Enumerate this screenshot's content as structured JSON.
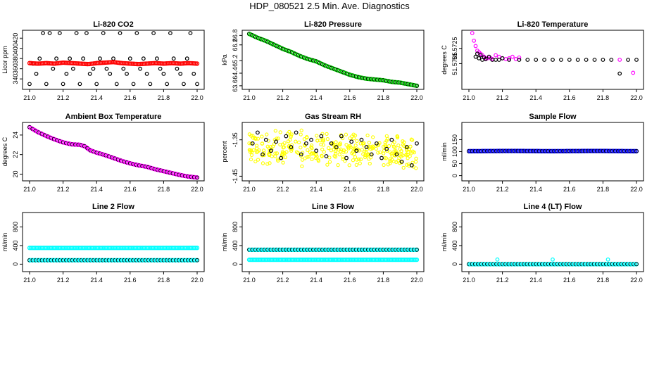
{
  "page": {
    "title": "HDP_080521  2.5 Min. Ave. Diagnostics"
  },
  "chart_data": [
    {
      "type": "scatter",
      "title": "Li-820 CO2",
      "xlabel": "",
      "ylabel": "Licor ppm",
      "xlim": [
        21.0,
        22.0
      ],
      "ylim": [
        325,
        430
      ],
      "xticks": [
        21.0,
        21.2,
        21.4,
        21.6,
        21.8,
        22.0
      ],
      "xtick_labels": [
        "21.0",
        "21.2",
        "21.4",
        "21.6",
        "21.8",
        "22.0"
      ],
      "yticks": [
        340,
        360,
        380,
        400,
        420
      ],
      "ytick_labels": [
        "340",
        "360",
        "380",
        "400",
        "420"
      ],
      "grid": false,
      "series": [
        {
          "name": "co2-scatter",
          "color": "#000000",
          "style": "ring",
          "x": [
            21.0,
            21.02,
            21.04,
            21.06,
            21.08,
            21.1,
            21.12,
            21.14,
            21.16,
            21.18,
            21.2,
            21.22,
            21.24,
            21.26,
            21.28,
            21.3,
            21.32,
            21.34,
            21.36,
            21.38,
            21.4,
            21.42,
            21.44,
            21.46,
            21.48,
            21.5,
            21.52,
            21.54,
            21.56,
            21.58,
            21.6,
            21.62,
            21.64,
            21.66,
            21.68,
            21.7,
            21.72,
            21.74,
            21.76,
            21.78,
            21.8,
            21.82,
            21.84,
            21.86,
            21.88,
            21.9,
            21.92,
            21.94,
            21.96,
            21.98,
            22.0
          ],
          "values": [
            330,
            370,
            350,
            380,
            430,
            330,
            430,
            360,
            380,
            430,
            330,
            350,
            380,
            360,
            430,
            330,
            380,
            430,
            350,
            360,
            330,
            380,
            430,
            360,
            350,
            380,
            330,
            430,
            360,
            350,
            380,
            330,
            430,
            360,
            380,
            350,
            330,
            430,
            380,
            360,
            350,
            330,
            430,
            380,
            360,
            350,
            330,
            380,
            430,
            350,
            330
          ]
        },
        {
          "name": "co2-trace",
          "color": "#ff0000",
          "style": "dense",
          "x": [
            21.0,
            21.05,
            21.1,
            21.15,
            21.2,
            21.25,
            21.3,
            21.35,
            21.4,
            21.45,
            21.5,
            21.55,
            21.6,
            21.65,
            21.7,
            21.75,
            21.8,
            21.85,
            21.9,
            21.95,
            22.0
          ],
          "values": [
            371,
            370,
            371,
            370,
            372,
            371,
            370,
            369,
            371,
            372,
            373,
            371,
            370,
            369,
            370,
            371,
            370,
            371,
            370,
            371,
            370
          ]
        }
      ]
    },
    {
      "type": "scatter",
      "title": "Li-820 Pressure",
      "xlabel": "",
      "ylabel": "kPa",
      "xlim": [
        21.0,
        22.0
      ],
      "ylim": [
        63.55,
        66.95
      ],
      "xticks": [
        21.0,
        21.2,
        21.4,
        21.6,
        21.8,
        22.0
      ],
      "xtick_labels": [
        "21.0",
        "21.2",
        "21.4",
        "21.6",
        "21.8",
        "22.0"
      ],
      "yticks": [
        63.6,
        64.4,
        65.2,
        66.2,
        66.8
      ],
      "ytick_labels": [
        "63.6",
        "64.4",
        "65.2",
        "66.2",
        "66.8"
      ],
      "grid": false,
      "series": [
        {
          "name": "pressure",
          "color": "#00cc00",
          "outline": "#000000",
          "style": "dense",
          "x": [
            21.0,
            21.05,
            21.1,
            21.15,
            21.2,
            21.25,
            21.3,
            21.35,
            21.4,
            21.45,
            21.5,
            21.55,
            21.6,
            21.65,
            21.7,
            21.75,
            21.8,
            21.85,
            21.9,
            21.95,
            22.0
          ],
          "values": [
            66.9,
            66.65,
            66.45,
            66.2,
            65.95,
            65.75,
            65.5,
            65.3,
            65.15,
            64.9,
            64.7,
            64.5,
            64.3,
            64.15,
            64.05,
            64.0,
            63.95,
            63.85,
            63.8,
            63.7,
            63.6
          ]
        }
      ]
    },
    {
      "type": "scatter",
      "title": "Li-820 Temperature",
      "xlabel": "",
      "ylabel": "degrees C",
      "xlim": [
        21.0,
        22.0
      ],
      "ylim": [
        51.5675,
        51.5745
      ],
      "xticks": [
        21.0,
        21.2,
        21.4,
        21.6,
        21.8,
        22.0
      ],
      "xtick_labels": [
        "21.0",
        "21.2",
        "21.4",
        "21.6",
        "21.8",
        "22.0"
      ],
      "yticks": [
        51.5705,
        51.5725
      ],
      "ytick_labels": [
        "51.5705",
        "51.5725"
      ],
      "grid": false,
      "series": [
        {
          "name": "temp-magenta",
          "color": "#ff00ff",
          "style": "ring",
          "x": [
            21.02,
            21.03,
            21.04,
            21.05,
            21.06,
            21.07,
            21.08,
            21.09,
            21.1,
            21.11,
            21.12,
            21.13,
            21.14,
            21.16,
            21.18,
            21.2,
            21.22,
            21.24,
            21.26,
            21.28,
            21.3,
            21.9,
            21.98
          ],
          "values": [
            51.5745,
            51.5735,
            51.5728,
            51.5722,
            51.572,
            51.5718,
            51.5716,
            51.5714,
            51.5712,
            51.5712,
            51.5714,
            51.5712,
            51.5711,
            51.5716,
            51.5714,
            51.5712,
            51.5711,
            51.5712,
            51.5714,
            51.5711,
            51.5713,
            51.571,
            51.5693
          ]
        },
        {
          "name": "temp-black",
          "color": "#000000",
          "style": "ring",
          "x": [
            21.04,
            21.05,
            21.06,
            21.07,
            21.08,
            21.09,
            21.1,
            21.12,
            21.14,
            21.16,
            21.18,
            21.2,
            21.24,
            21.3,
            21.35,
            21.4,
            21.45,
            21.5,
            21.55,
            21.6,
            21.65,
            21.7,
            21.75,
            21.8,
            21.85,
            21.9,
            21.95,
            22.0
          ],
          "values": [
            51.5714,
            51.5718,
            51.5712,
            51.5716,
            51.571,
            51.5713,
            51.5711,
            51.5714,
            51.571,
            51.571,
            51.571,
            51.5712,
            51.571,
            51.571,
            51.571,
            51.571,
            51.571,
            51.571,
            51.571,
            51.571,
            51.571,
            51.571,
            51.571,
            51.571,
            51.571,
            51.5692,
            51.571,
            51.571
          ]
        }
      ]
    },
    {
      "type": "scatter",
      "title": "Ambient Box Temperature",
      "xlabel": "",
      "ylabel": "degrees C",
      "xlim": [
        21.0,
        22.0
      ],
      "ylim": [
        19.6,
        25.0
      ],
      "xticks": [
        21.0,
        21.2,
        21.4,
        21.6,
        21.8,
        22.0
      ],
      "xtick_labels": [
        "21.0",
        "21.2",
        "21.4",
        "21.6",
        "21.8",
        "22.0"
      ],
      "yticks": [
        20,
        22,
        24
      ],
      "ytick_labels": [
        "20",
        "22",
        "24"
      ],
      "grid": false,
      "series": [
        {
          "name": "ambient-temp",
          "color": "#ff00ff",
          "outline": "#000000",
          "style": "dense",
          "x": [
            21.0,
            21.05,
            21.1,
            21.15,
            21.2,
            21.25,
            21.3,
            21.33,
            21.36,
            21.4,
            21.45,
            21.5,
            21.55,
            21.6,
            21.65,
            21.7,
            21.75,
            21.8,
            21.85,
            21.9,
            21.95,
            22.0
          ],
          "values": [
            24.8,
            24.3,
            23.9,
            23.55,
            23.25,
            23.05,
            23.0,
            22.85,
            22.45,
            22.2,
            21.95,
            21.65,
            21.35,
            21.1,
            20.9,
            20.75,
            20.5,
            20.3,
            20.1,
            19.9,
            19.75,
            19.65
          ]
        }
      ]
    },
    {
      "type": "scatter",
      "title": "Gas Stream RH",
      "xlabel": "",
      "ylabel": "percent",
      "xlim": [
        21.0,
        22.0
      ],
      "ylim": [
        -1.455,
        -1.31
      ],
      "xticks": [
        21.0,
        21.2,
        21.4,
        21.6,
        21.8,
        22.0
      ],
      "xtick_labels": [
        "21.0",
        "21.2",
        "21.4",
        "21.6",
        "21.8",
        "22.0"
      ],
      "yticks": [
        -1.35,
        -1.45
      ],
      "ytick_labels": [
        "-1.35",
        "-1.45"
      ],
      "grid": false,
      "series": [
        {
          "name": "rh-yellow",
          "color": "#ffff00",
          "style": "cloud",
          "x": [
            21.0,
            21.5,
            22.0
          ],
          "values": [
            -1.37,
            -1.375,
            -1.385
          ],
          "spread": 0.05
        },
        {
          "name": "rh-black",
          "color": "#000000",
          "style": "ring",
          "x": [
            21.02,
            21.05,
            21.08,
            21.1,
            21.13,
            21.16,
            21.19,
            21.22,
            21.25,
            21.28,
            21.31,
            21.34,
            21.37,
            21.4,
            21.43,
            21.46,
            21.49,
            21.52,
            21.55,
            21.58,
            21.61,
            21.64,
            21.67,
            21.7,
            21.73,
            21.76,
            21.79,
            21.82,
            21.85,
            21.88,
            21.91,
            21.94,
            21.97,
            22.0
          ],
          "values": [
            -1.36,
            -1.33,
            -1.39,
            -1.35,
            -1.38,
            -1.355,
            -1.4,
            -1.34,
            -1.37,
            -1.33,
            -1.39,
            -1.36,
            -1.35,
            -1.38,
            -1.34,
            -1.395,
            -1.36,
            -1.37,
            -1.34,
            -1.4,
            -1.355,
            -1.38,
            -1.35,
            -1.37,
            -1.39,
            -1.36,
            -1.4,
            -1.375,
            -1.35,
            -1.39,
            -1.41,
            -1.37,
            -1.42,
            -1.36
          ]
        }
      ]
    },
    {
      "type": "scatter",
      "title": "Sample Flow",
      "xlabel": "",
      "ylabel": "ml/min",
      "xlim": [
        21.0,
        22.0
      ],
      "ylim": [
        -10,
        210
      ],
      "xticks": [
        21.0,
        21.2,
        21.4,
        21.6,
        21.8,
        22.0
      ],
      "xtick_labels": [
        "21.0",
        "21.2",
        "21.4",
        "21.6",
        "21.8",
        "22.0"
      ],
      "yticks": [
        0,
        50,
        100,
        150
      ],
      "ytick_labels": [
        "0",
        "50",
        "100",
        "150"
      ],
      "grid": false,
      "series": [
        {
          "name": "sample-flow",
          "color": "#0000ff",
          "outline": "#000000",
          "style": "dense",
          "x": [
            21.0,
            21.25,
            21.5,
            21.75,
            22.0
          ],
          "values": [
            102,
            103,
            102,
            103,
            102
          ]
        }
      ]
    },
    {
      "type": "scatter",
      "title": "Line 2 Flow",
      "xlabel": "",
      "ylabel": "ml/min",
      "xlim": [
        21.0,
        22.0
      ],
      "ylim": [
        -100,
        1050
      ],
      "xticks": [
        21.0,
        21.2,
        21.4,
        21.6,
        21.8,
        22.0
      ],
      "xtick_labels": [
        "21.0",
        "21.2",
        "21.4",
        "21.6",
        "21.8",
        "22.0"
      ],
      "yticks": [
        0,
        400,
        800
      ],
      "ytick_labels": [
        "0",
        "400",
        "800"
      ],
      "grid": false,
      "series": [
        {
          "name": "line2-main",
          "color": "#00ffff",
          "style": "dense",
          "x": [
            21.0,
            21.5,
            22.0
          ],
          "values": [
            350,
            350,
            350
          ]
        },
        {
          "name": "line2-alt",
          "color": "#00ffff",
          "outline": "#000000",
          "style": "dense",
          "x": [
            21.0,
            21.5,
            22.0
          ],
          "values": [
            85,
            85,
            85
          ]
        }
      ]
    },
    {
      "type": "scatter",
      "title": "Line 3 Flow",
      "xlabel": "",
      "ylabel": "ml/min",
      "xlim": [
        21.0,
        22.0
      ],
      "ylim": [
        -100,
        1050
      ],
      "xticks": [
        21.0,
        21.2,
        21.4,
        21.6,
        21.8,
        22.0
      ],
      "xtick_labels": [
        "21.0",
        "21.2",
        "21.4",
        "21.6",
        "21.8",
        "22.0"
      ],
      "yticks": [
        0,
        400,
        800
      ],
      "ytick_labels": [
        "0",
        "400",
        "800"
      ],
      "grid": false,
      "series": [
        {
          "name": "line3-main",
          "color": "#00ffff",
          "style": "dense",
          "x": [
            21.0,
            21.5,
            22.0
          ],
          "values": [
            95,
            95,
            95
          ]
        },
        {
          "name": "line3-alt",
          "color": "#00ffff",
          "outline": "#000000",
          "style": "dense",
          "x": [
            21.0,
            21.5,
            22.0
          ],
          "values": [
            310,
            310,
            310
          ]
        }
      ]
    },
    {
      "type": "scatter",
      "title": "Line 4 (LT) Flow",
      "xlabel": "",
      "ylabel": "ml/min",
      "xlim": [
        21.0,
        22.0
      ],
      "ylim": [
        -100,
        1050
      ],
      "xticks": [
        21.0,
        21.2,
        21.4,
        21.6,
        21.8,
        22.0
      ],
      "xtick_labels": [
        "21.0",
        "21.2",
        "21.4",
        "21.6",
        "21.8",
        "22.0"
      ],
      "yticks": [
        0,
        400,
        800
      ],
      "ytick_labels": [
        "0",
        "400",
        "800"
      ],
      "grid": false,
      "series": [
        {
          "name": "line4-main",
          "color": "#00ffff",
          "outline": "#000000",
          "style": "dense",
          "x": [
            21.0,
            21.5,
            22.0
          ],
          "values": [
            0,
            0,
            0
          ]
        },
        {
          "name": "line4-spikes",
          "color": "#00ffff",
          "style": "ring",
          "x": [
            21.17,
            21.5,
            21.83
          ],
          "values": [
            100,
            100,
            100
          ]
        }
      ]
    }
  ]
}
